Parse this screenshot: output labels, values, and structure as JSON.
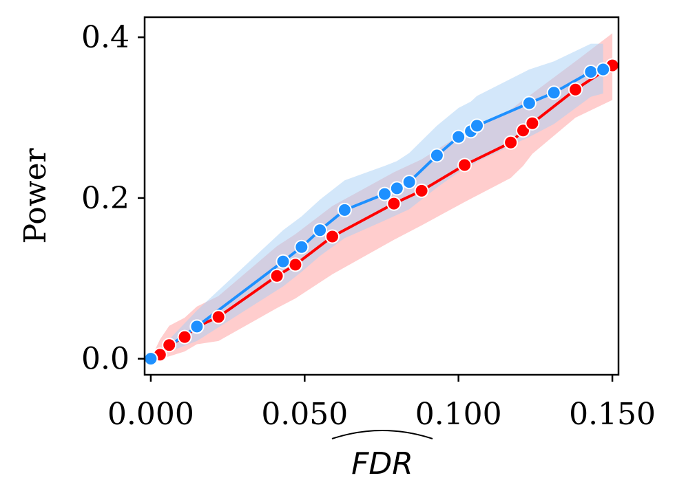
{
  "chart_data": {
    "type": "line",
    "title": "",
    "xlabel": "FDR",
    "xlabel_decoration": "wide-hat",
    "ylabel": "Power",
    "xlim": [
      -0.002,
      0.152
    ],
    "ylim": [
      -0.02,
      0.425
    ],
    "xticks": [
      0.0,
      0.05,
      0.1,
      0.15
    ],
    "xtick_labels": [
      "0.000",
      "0.050",
      "0.100",
      "0.150"
    ],
    "yticks": [
      0.0,
      0.2,
      0.4
    ],
    "ytick_labels": [
      "0.0",
      "0.2",
      "0.4"
    ],
    "grid": false,
    "legend": "none",
    "series": [
      {
        "name": "red",
        "color": "#ff0000",
        "band_color": "#ff9c9c",
        "x": [
          0.0,
          0.003,
          0.006,
          0.011,
          0.015,
          0.022,
          0.041,
          0.047,
          0.059,
          0.079,
          0.088,
          0.102,
          0.117,
          0.121,
          0.124,
          0.138,
          0.15
        ],
        "y": [
          0.0,
          0.005,
          0.017,
          0.027,
          0.04,
          0.052,
          0.103,
          0.117,
          0.152,
          0.193,
          0.209,
          0.241,
          0.269,
          0.284,
          0.293,
          0.335,
          0.365
        ],
        "band_lower": [
          0.0,
          0.0,
          0.003,
          0.009,
          0.018,
          0.022,
          0.063,
          0.075,
          0.105,
          0.148,
          0.166,
          0.195,
          0.225,
          0.24,
          0.255,
          0.3,
          0.322
        ],
        "band_upper": [
          0.0,
          0.024,
          0.041,
          0.051,
          0.065,
          0.078,
          0.14,
          0.155,
          0.19,
          0.232,
          0.248,
          0.282,
          0.31,
          0.322,
          0.33,
          0.37,
          0.405
        ]
      },
      {
        "name": "blue",
        "color": "#1e90ff",
        "band_color": "#a8d0f5",
        "x": [
          0.0,
          0.015,
          0.043,
          0.049,
          0.055,
          0.063,
          0.076,
          0.08,
          0.084,
          0.093,
          0.1,
          0.104,
          0.106,
          0.123,
          0.131,
          0.143,
          0.147
        ],
        "y": [
          0.0,
          0.04,
          0.121,
          0.139,
          0.16,
          0.185,
          0.205,
          0.212,
          0.22,
          0.253,
          0.276,
          0.283,
          0.29,
          0.318,
          0.331,
          0.357,
          0.36
        ],
        "band_lower": [
          0.0,
          0.022,
          0.09,
          0.108,
          0.128,
          0.15,
          0.172,
          0.179,
          0.186,
          0.213,
          0.232,
          0.24,
          0.245,
          0.276,
          0.292,
          0.326,
          0.33
        ],
        "band_upper": [
          0.0,
          0.06,
          0.16,
          0.177,
          0.198,
          0.222,
          0.24,
          0.246,
          0.256,
          0.29,
          0.312,
          0.32,
          0.327,
          0.36,
          0.37,
          0.392,
          0.392
        ]
      }
    ]
  }
}
